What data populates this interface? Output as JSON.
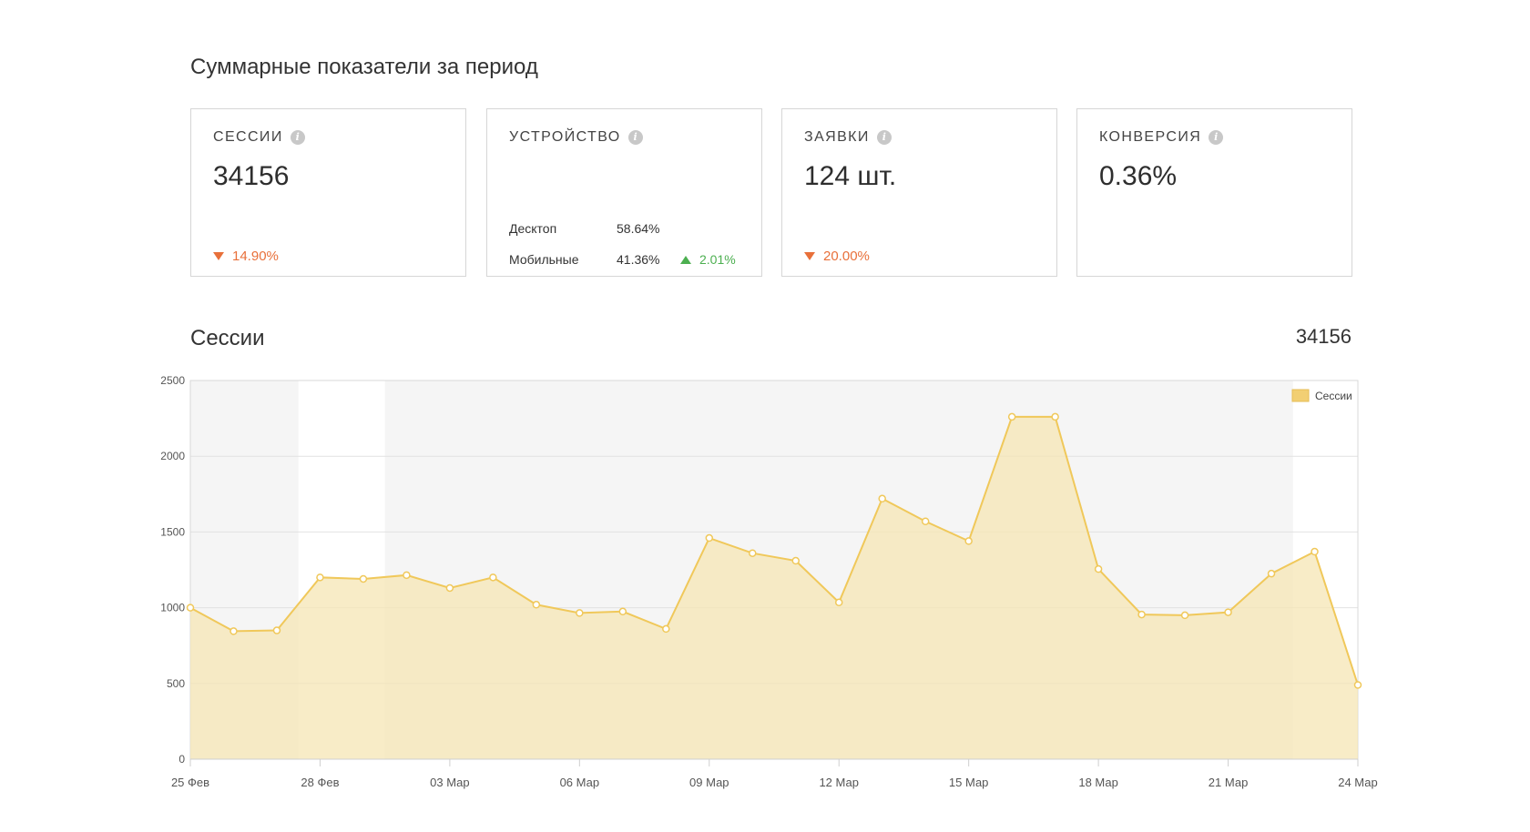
{
  "summary": {
    "title": "Суммарные показатели за период",
    "cards": {
      "sessions": {
        "label": "СЕССИИ",
        "value": "34156",
        "delta": "14.90%",
        "direction": "down"
      },
      "device": {
        "label": "УСТРОЙСТВО",
        "rows": [
          {
            "name": "Десктоп",
            "value": "58.64%",
            "delta": ""
          },
          {
            "name": "Мобильные",
            "value": "41.36%",
            "delta": "2.01%"
          }
        ]
      },
      "leads": {
        "label": "ЗАЯВКИ",
        "value": "124 шт.",
        "delta": "20.00%",
        "direction": "down"
      },
      "conversion": {
        "label": "КОНВЕРСИЯ",
        "value": "0.36%"
      }
    }
  },
  "sessions_section": {
    "title": "Сессии",
    "total": "34156"
  },
  "colors": {
    "accent_down": "#e8703a",
    "accent_up": "#4caf50",
    "series_line": "#f0c85a",
    "series_fill": "#f5e6b4",
    "weekend_band": "#f5f5f5"
  },
  "chart_data": {
    "type": "area",
    "x": [
      "25 Фев",
      "26 Фев",
      "27 Фев",
      "28 Фев",
      "01 Мар",
      "02 Мар",
      "03 Мар",
      "04 Мар",
      "05 Мар",
      "06 Мар",
      "07 Мар",
      "08 Мар",
      "09 Мар",
      "10 Мар",
      "11 Мар",
      "12 Мар",
      "13 Мар",
      "14 Мар",
      "15 Мар",
      "16 Мар",
      "17 Мар",
      "18 Мар",
      "19 Мар",
      "20 Мар",
      "21 Мар",
      "22 Мар",
      "23 Мар",
      "24 Мар"
    ],
    "tick_labels": [
      "25 Фев",
      "28 Фев",
      "03 Мар",
      "06 Мар",
      "09 Мар",
      "12 Мар",
      "15 Мар",
      "18 Мар",
      "21 Мар",
      "24 Мар"
    ],
    "series": [
      {
        "name": "Сессии",
        "values": [
          1000,
          845,
          850,
          1200,
          1190,
          1215,
          1130,
          1200,
          1020,
          965,
          975,
          860,
          1460,
          1360,
          1310,
          1035,
          1720,
          1570,
          1440,
          2260,
          2260,
          1255,
          955,
          950,
          970,
          1225,
          1370,
          490
        ]
      }
    ],
    "ylim": [
      0,
      2500
    ],
    "yticks": [
      0,
      500,
      1000,
      1500,
      2000,
      2500
    ],
    "grid": true,
    "legend": "top-right",
    "shaded_bands": [
      [
        "25 Фев",
        "27 Фев"
      ],
      [
        "02 Мар",
        "08 Мар"
      ],
      [
        "09 Мар",
        "15 Мар"
      ],
      [
        "16 Мар",
        "22 Мар"
      ]
    ]
  }
}
